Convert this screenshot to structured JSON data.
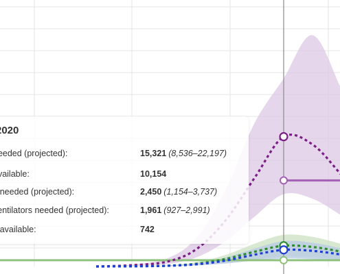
{
  "chart_data": {
    "type": "area",
    "x_range": [
      0,
      100
    ],
    "ylim": [
      0,
      30000
    ],
    "hover_x": 66,
    "grid": true,
    "series": [
      {
        "key": "beds",
        "color": "#7b1f87",
        "band_color": "#ddc8e6",
        "capacity": 10154,
        "x": [
          40,
          45,
          50,
          54,
          58,
          62,
          66,
          70,
          74,
          78,
          82,
          86,
          90,
          94,
          98,
          100
        ],
        "values": [
          0,
          150,
          600,
          2100,
          5500,
          10500,
          15321,
          14400,
          10800,
          6600,
          3300,
          1300,
          450,
          150,
          40,
          20
        ],
        "lower": [
          0,
          80,
          300,
          1100,
          3000,
          5900,
          8536,
          8000,
          6000,
          3600,
          1800,
          700,
          240,
          80,
          20,
          10
        ],
        "upper": [
          0,
          230,
          1000,
          3500,
          9200,
          17000,
          22197,
          27300,
          20900,
          12500,
          5800,
          2300,
          800,
          270,
          70,
          35
        ]
      },
      {
        "key": "icu",
        "color": "#2e8b2e",
        "band_color": "#cfe3c6",
        "capacity": 742,
        "x": [
          40,
          45,
          50,
          54,
          58,
          62,
          66,
          70,
          74,
          78,
          82,
          86,
          90,
          94,
          98,
          100
        ],
        "values": [
          0,
          25,
          100,
          330,
          900,
          1750,
          2450,
          2300,
          1750,
          1050,
          550,
          220,
          80,
          25,
          8,
          4
        ],
        "lower": [
          0,
          12,
          50,
          160,
          440,
          850,
          1154,
          1090,
          820,
          500,
          260,
          100,
          38,
          12,
          4,
          2
        ],
        "upper": [
          0,
          40,
          150,
          510,
          1380,
          2700,
          3737,
          3500,
          2650,
          1600,
          840,
          340,
          120,
          40,
          12,
          6
        ]
      },
      {
        "key": "ventilators",
        "color": "#1f3fd4",
        "band_color": "#b9cce4",
        "capacity": null,
        "x": [
          40,
          45,
          50,
          54,
          58,
          62,
          66,
          70,
          74,
          78,
          82,
          86,
          90,
          94,
          98,
          100
        ],
        "values": [
          0,
          20,
          80,
          260,
          700,
          1400,
          1961,
          1840,
          1400,
          840,
          440,
          180,
          64,
          20,
          6,
          3
        ],
        "lower": [
          0,
          10,
          40,
          130,
          350,
          700,
          927,
          870,
          660,
          400,
          210,
          85,
          30,
          10,
          3,
          1
        ],
        "upper": [
          0,
          30,
          120,
          400,
          1070,
          2130,
          2991,
          2800,
          2130,
          1280,
          670,
          270,
          96,
          30,
          9,
          4
        ]
      }
    ]
  },
  "tooltip": {
    "date": "2020",
    "rows": [
      {
        "label": "needed (projected):",
        "value": "15,321",
        "range": "(8,536–22,197)"
      },
      {
        "label": "available:",
        "value": "10,154",
        "range": ""
      },
      {
        "label": "s needed (projected):",
        "value": "2,450",
        "range": "(1,154–3,737)"
      },
      {
        "label": "ventilators needed (projected):",
        "value": "1,961",
        "range": "(927–2,991)"
      },
      {
        "label": "s available:",
        "value": "742",
        "range": ""
      }
    ]
  }
}
